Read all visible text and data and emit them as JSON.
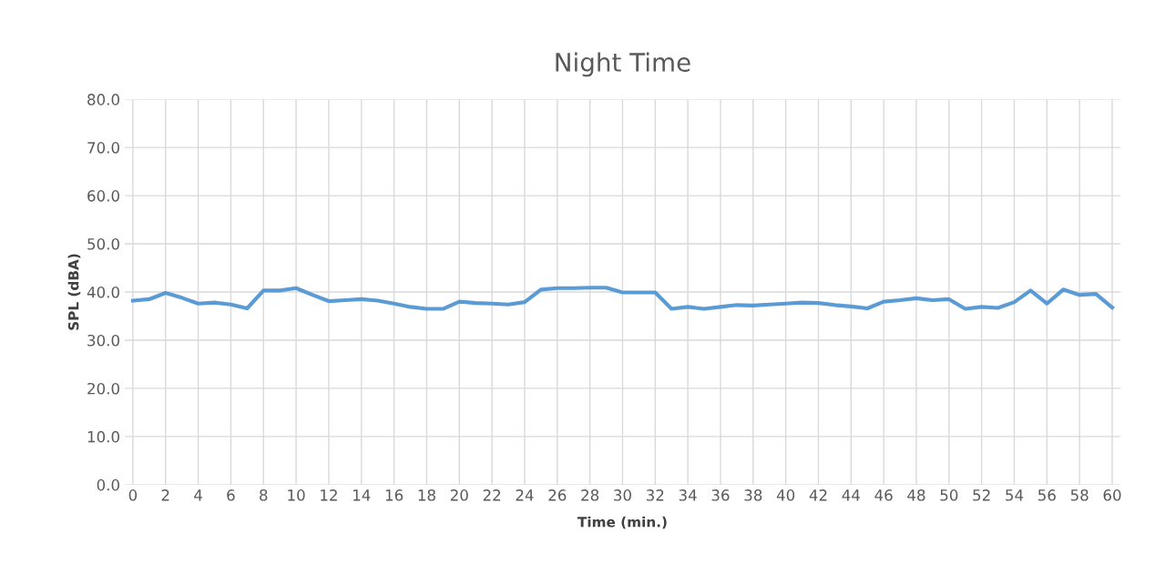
{
  "chart_data": {
    "type": "line",
    "title": "Night Time",
    "xlabel": "Time (min.)",
    "ylabel": "SPL (dBA)",
    "x": [
      0,
      1,
      2,
      3,
      4,
      5,
      6,
      7,
      8,
      9,
      10,
      11,
      12,
      13,
      14,
      15,
      16,
      17,
      18,
      19,
      20,
      21,
      22,
      23,
      24,
      25,
      26,
      27,
      28,
      29,
      30,
      31,
      32,
      33,
      34,
      35,
      36,
      37,
      38,
      39,
      40,
      41,
      42,
      43,
      44,
      45,
      46,
      47,
      48,
      49,
      50,
      51,
      52,
      53,
      54,
      55,
      56,
      57,
      58,
      59,
      60
    ],
    "series": [
      {
        "color": "#5b9bd5",
        "values": [
          38.2,
          38.5,
          39.8,
          38.8,
          37.6,
          37.8,
          37.4,
          36.6,
          40.3,
          40.3,
          40.8,
          39.4,
          38.1,
          38.3,
          38.5,
          38.2,
          37.6,
          36.9,
          36.5,
          36.5,
          38.0,
          37.7,
          37.6,
          37.4,
          37.9,
          40.5,
          40.8,
          40.8,
          40.9,
          40.9,
          39.9,
          39.9,
          39.9,
          36.5,
          36.9,
          36.5,
          36.9,
          37.3,
          37.2,
          37.4,
          37.6,
          37.8,
          37.7,
          37.3,
          37.0,
          36.6,
          38.0,
          38.3,
          38.7,
          38.3,
          38.5,
          36.5,
          36.9,
          36.7,
          37.9,
          40.3,
          37.6,
          40.5,
          39.4,
          39.6,
          36.8
        ]
      }
    ],
    "xlim": [
      -0.5,
      60.5
    ],
    "xticks": [
      0,
      2,
      4,
      6,
      8,
      10,
      12,
      14,
      16,
      18,
      20,
      22,
      24,
      26,
      28,
      30,
      32,
      34,
      36,
      38,
      40,
      42,
      44,
      46,
      48,
      50,
      52,
      54,
      56,
      58,
      60
    ],
    "ylim": [
      0,
      80
    ],
    "yticks": [
      {
        "value": 0,
        "label": "0.0"
      },
      {
        "value": 10,
        "label": "10.0"
      },
      {
        "value": 20,
        "label": "20.0"
      },
      {
        "value": 30,
        "label": "30.0"
      },
      {
        "value": 40,
        "label": "40.0"
      },
      {
        "value": 50,
        "label": "50.0"
      },
      {
        "value": 60,
        "label": "60.0"
      },
      {
        "value": 70,
        "label": "70.0"
      },
      {
        "value": 80,
        "label": "80.0"
      }
    ],
    "grid": true,
    "legend": false,
    "marker": "none",
    "line_style": "solid"
  }
}
